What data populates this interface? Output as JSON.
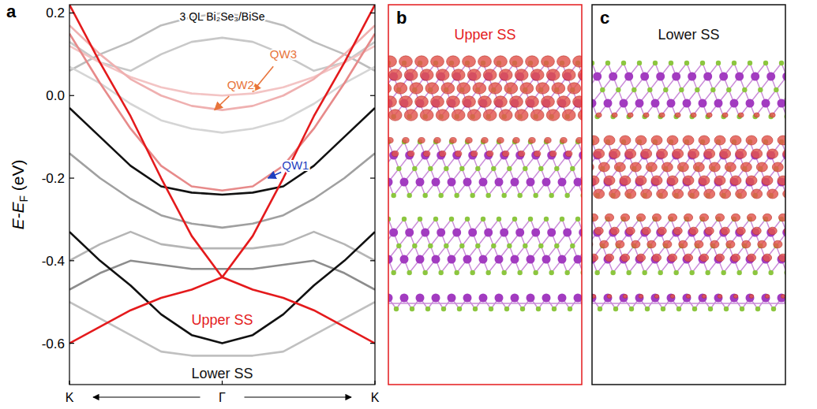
{
  "chart_data": {
    "type": "line",
    "panel_label": "a",
    "title": "3 QL Bi₂Se₃/BiSe",
    "ylabel": "E-EF (eV)",
    "xlim": [
      -1,
      1
    ],
    "ylim": [
      -0.7,
      0.22
    ],
    "xticks": [
      {
        "value": -1,
        "label": "K"
      },
      {
        "value": 0,
        "label": "Γ"
      },
      {
        "value": 1,
        "label": "K"
      }
    ],
    "yticks": [
      {
        "value": 0.2,
        "label": "0.2"
      },
      {
        "value": 0,
        "label": "0.0"
      },
      {
        "value": -0.2,
        "label": "-0.2"
      },
      {
        "value": -0.4,
        "label": "-0.4"
      },
      {
        "value": -0.6,
        "label": "-0.6"
      }
    ],
    "x": [
      -1,
      -0.8,
      -0.6,
      -0.4,
      -0.2,
      0,
      0.2,
      0.4,
      0.6,
      0.8,
      1
    ],
    "series": [
      {
        "color": "#c8c8c8",
        "values": [
          0.13,
          0.08,
          0.06,
          0.1,
          0.13,
          0.14,
          0.13,
          0.1,
          0.06,
          0.08,
          0.13
        ]
      },
      {
        "color": "#bdbdbd",
        "values": [
          0.06,
          0.1,
          0.13,
          0.17,
          0.19,
          0.2,
          0.19,
          0.17,
          0.13,
          0.1,
          0.06
        ]
      },
      {
        "color": "#a0a0a0",
        "values": [
          -0.14,
          -0.2,
          -0.25,
          -0.29,
          -0.31,
          -0.32,
          -0.31,
          -0.29,
          -0.25,
          -0.2,
          -0.14
        ]
      },
      {
        "color": "#b5b5b5",
        "values": [
          -0.4,
          -0.36,
          -0.33,
          -0.36,
          -0.37,
          -0.37,
          -0.37,
          -0.36,
          -0.33,
          -0.36,
          -0.4
        ]
      },
      {
        "color": "#8c8c8c",
        "values": [
          -0.47,
          -0.43,
          -0.4,
          -0.41,
          -0.42,
          -0.42,
          -0.42,
          -0.41,
          -0.4,
          -0.43,
          -0.47
        ]
      },
      {
        "color": "#c0c0c0",
        "values": [
          -0.5,
          -0.54,
          -0.58,
          -0.62,
          -0.63,
          -0.63,
          -0.63,
          -0.62,
          -0.58,
          -0.54,
          -0.5
        ]
      },
      {
        "color": "#d5d5d5",
        "values": [
          0.07,
          0.03,
          -0.02,
          -0.06,
          -0.08,
          -0.09,
          -0.08,
          -0.06,
          -0.02,
          0.03,
          0.07
        ]
      },
      {
        "color": "#f3c4c4",
        "values": [
          0.12,
          0.08,
          0.045,
          0.02,
          0.005,
          0,
          0.005,
          0.02,
          0.045,
          0.08,
          0.12
        ]
      },
      {
        "color": "#efb0b0",
        "values": [
          0.17,
          0.1,
          0.04,
          0,
          -0.025,
          -0.035,
          -0.025,
          0,
          0.04,
          0.1,
          0.17
        ]
      },
      {
        "color": "#e78a8a",
        "values": [
          0.15,
          0.03,
          -0.08,
          -0.17,
          -0.22,
          -0.23,
          -0.22,
          -0.17,
          -0.08,
          0.03,
          0.15
        ]
      },
      {
        "color": "#111111",
        "values": [
          -0.03,
          -0.1,
          -0.17,
          -0.22,
          -0.235,
          -0.24,
          -0.235,
          -0.22,
          -0.17,
          -0.1,
          -0.03
        ]
      },
      {
        "color": "#111111",
        "values": [
          -0.33,
          -0.4,
          -0.46,
          -0.53,
          -0.58,
          -0.6,
          -0.58,
          -0.53,
          -0.46,
          -0.4,
          -0.33
        ]
      },
      {
        "color": "#e41a1c",
        "values": [
          0.22,
          0.08,
          -0.05,
          -0.2,
          -0.34,
          -0.44,
          -0.34,
          -0.2,
          -0.05,
          0.08,
          0.22
        ]
      },
      {
        "color": "#e41a1c",
        "values": [
          -0.6,
          -0.56,
          -0.52,
          -0.49,
          -0.47,
          -0.44,
          -0.47,
          -0.49,
          -0.52,
          -0.56,
          -0.6
        ]
      }
    ],
    "annotations": [
      {
        "text": "QW3",
        "x": 0.4,
        "y": 0.1,
        "arrow_x": 0.2,
        "arrow_y": 0.01,
        "color": "#e8743b"
      },
      {
        "text": "QW2",
        "x": 0.12,
        "y": 0.025,
        "arrow_x": -0.05,
        "arrow_y": -0.035,
        "color": "#e8743b"
      },
      {
        "text": "QW1",
        "x": 0.48,
        "y": -0.17,
        "arrow_x": 0.3,
        "arrow_y": -0.2,
        "color": "#1f3fbf"
      },
      {
        "text": "Upper SS",
        "x": 0,
        "y": -0.545,
        "color": "#e41a1c"
      },
      {
        "text": "Lower SS",
        "x": 0,
        "y": -0.675,
        "color": "#111111"
      }
    ]
  },
  "panels": [
    {
      "letter": "b",
      "title": "Upper SS",
      "color": "#e41a1c"
    },
    {
      "letter": "c",
      "title": "Lower SS",
      "color": "#111111"
    }
  ]
}
